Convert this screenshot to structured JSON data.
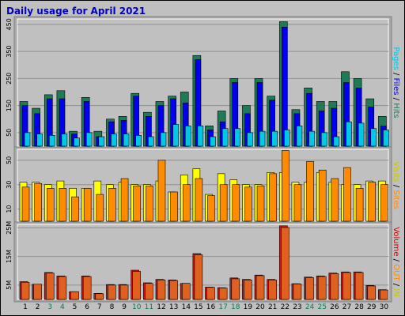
{
  "title": "Daily usage for April 2021",
  "colors": {
    "hits": "#1e7c55",
    "files": "#0000ee",
    "pages": "#00c8e6",
    "visits": "#ffff00",
    "sites": "#ff8c00",
    "kbin": "#e06020",
    "kbout": "#d01818",
    "volume_label": "#cc0000",
    "weekend": "#00805a",
    "title": "#0000cc"
  },
  "sidebar_labels": {
    "top": [
      {
        "text": "Pages",
        "color": "#00c8e6"
      },
      {
        "text": " / ",
        "color": "#000000"
      },
      {
        "text": "Files",
        "color": "#0000cc"
      },
      {
        "text": " / ",
        "color": "#000000"
      },
      {
        "text": "Hits",
        "color": "#1e7c55"
      }
    ],
    "middle": [
      {
        "text": "Visits",
        "color": "#c8c800"
      },
      {
        "text": " / ",
        "color": "#000000"
      },
      {
        "text": "Sites",
        "color": "#ff8c00"
      }
    ],
    "bottom": [
      {
        "text": "Volume",
        "color": "#cc0000"
      },
      {
        "text": " / ",
        "color": "#000000"
      },
      {
        "text": "OUT",
        "color": "#ff8c00"
      },
      {
        "text": " / ",
        "color": "#000000"
      },
      {
        "text": "IN",
        "color": "#c8c800"
      }
    ]
  },
  "chart_data": [
    {
      "type": "bar",
      "name": "pages-files-hits",
      "categories": [
        "1",
        "2",
        "3",
        "4",
        "5",
        "6",
        "7",
        "8",
        "9",
        "10",
        "11",
        "12",
        "13",
        "14",
        "15",
        "16",
        "17",
        "18",
        "19",
        "20",
        "21",
        "22",
        "23",
        "24",
        "25",
        "26",
        "27",
        "28",
        "29",
        "30"
      ],
      "y_ticks": [
        "50",
        "150",
        "250",
        "350",
        "450"
      ],
      "ylim": [
        0,
        470
      ],
      "series": [
        {
          "name": "Hits",
          "values": [
            165,
            140,
            190,
            205,
            55,
            180,
            55,
            100,
            110,
            195,
            125,
            165,
            185,
            200,
            335,
            75,
            130,
            250,
            150,
            250,
            185,
            460,
            135,
            215,
            165,
            165,
            275,
            250,
            175,
            110
          ]
        },
        {
          "name": "Files",
          "values": [
            150,
            120,
            175,
            175,
            45,
            165,
            35,
            90,
            95,
            185,
            110,
            150,
            175,
            160,
            320,
            60,
            90,
            235,
            120,
            235,
            170,
            440,
            120,
            195,
            130,
            140,
            235,
            215,
            145,
            75
          ]
        },
        {
          "name": "Pages",
          "values": [
            50,
            45,
            40,
            45,
            30,
            50,
            35,
            45,
            45,
            40,
            35,
            50,
            80,
            75,
            75,
            35,
            65,
            65,
            50,
            55,
            55,
            60,
            75,
            55,
            50,
            35,
            90,
            85,
            65,
            60
          ]
        }
      ]
    },
    {
      "type": "bar",
      "name": "visits-sites",
      "categories": [
        "1",
        "2",
        "3",
        "4",
        "5",
        "6",
        "7",
        "8",
        "9",
        "10",
        "11",
        "12",
        "13",
        "14",
        "15",
        "16",
        "17",
        "18",
        "19",
        "20",
        "21",
        "22",
        "23",
        "24",
        "25",
        "26",
        "27",
        "28",
        "29",
        "30"
      ],
      "y_ticks": [
        "10",
        "30",
        "50"
      ],
      "ylim": [
        0,
        59
      ],
      "series": [
        {
          "name": "Visits",
          "values": [
            32,
            32,
            30,
            33,
            27,
            27,
            33,
            30,
            32,
            30,
            30,
            33,
            24,
            38,
            43,
            22,
            39,
            34,
            30,
            30,
            40,
            40,
            32,
            32,
            40,
            32,
            30,
            30,
            33,
            33
          ]
        },
        {
          "name": "Sites",
          "values": [
            28,
            31,
            27,
            27,
            20,
            27,
            22,
            27,
            35,
            29,
            29,
            50,
            24,
            30,
            35,
            21,
            30,
            30,
            28,
            29,
            39,
            58,
            30,
            49,
            42,
            35,
            44,
            27,
            32,
            30
          ]
        }
      ]
    },
    {
      "type": "bar",
      "name": "volume",
      "categories": [
        "1",
        "2",
        "3",
        "4",
        "5",
        "6",
        "7",
        "8",
        "9",
        "10",
        "11",
        "12",
        "13",
        "14",
        "15",
        "16",
        "17",
        "18",
        "19",
        "20",
        "21",
        "22",
        "23",
        "24",
        "25",
        "26",
        "27",
        "28",
        "29",
        "30"
      ],
      "y_ticks": [
        "5M",
        "15M",
        "25M"
      ],
      "ylim": [
        0,
        26.2
      ],
      "series": [
        {
          "name": "KBytes OUT",
          "values": [
            6.2,
            5.3,
            9.4,
            8.2,
            2.7,
            8.2,
            2.1,
            5.2,
            5.2,
            10.2,
            5.8,
            7.0,
            6.8,
            5.6,
            16.0,
            4.3,
            4.1,
            7.5,
            7.0,
            8.5,
            7.0,
            25.7,
            5.5,
            7.8,
            8.2,
            9.2,
            9.6,
            9.6,
            4.9,
            3.4
          ]
        },
        {
          "name": "KBytes IN",
          "values": [
            6.0,
            5.3,
            9.2,
            8.0,
            2.7,
            8.0,
            2.0,
            5.0,
            5.0,
            9.8,
            5.6,
            6.8,
            6.6,
            5.6,
            15.6,
            4.2,
            4.0,
            7.2,
            6.8,
            8.3,
            6.8,
            25.1,
            5.4,
            7.6,
            8.0,
            9.0,
            9.4,
            9.4,
            4.7,
            3.3
          ]
        }
      ]
    }
  ]
}
